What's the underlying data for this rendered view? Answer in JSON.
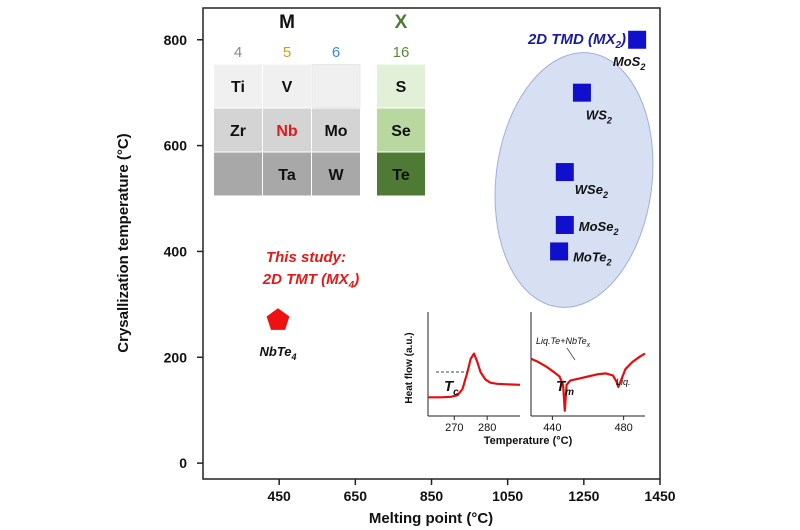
{
  "chart_data": {
    "type": "scatter",
    "title": "",
    "xlabel": "Melting point (°C)",
    "ylabel": "Crysallization temperature (°C)",
    "xlim": [
      250,
      1450
    ],
    "ylim": [
      -30,
      860
    ],
    "xticks": [
      450,
      650,
      850,
      1050,
      1250,
      1450
    ],
    "yticks": [
      0,
      200,
      400,
      600,
      800
    ],
    "series": [
      {
        "name": "2D TMD (MX2)",
        "marker": "square",
        "color": "#1010cc",
        "points": [
          {
            "label_base": "MoS",
            "label_sub": "2",
            "x": 1390,
            "y": 800
          },
          {
            "label_base": "WS",
            "label_sub": "2",
            "x": 1245,
            "y": 700
          },
          {
            "label_base": "WSe",
            "label_sub": "2",
            "x": 1200,
            "y": 550
          },
          {
            "label_base": "MoSe",
            "label_sub": "2",
            "x": 1200,
            "y": 450
          },
          {
            "label_base": "MoTe",
            "label_sub": "2",
            "x": 1185,
            "y": 400
          }
        ]
      },
      {
        "name": "2D TMT (MX4)",
        "marker": "pentagon",
        "color": "#ee1111",
        "points": [
          {
            "label_base": "NbTe",
            "label_sub": "4",
            "x": 447,
            "y": 270
          }
        ]
      }
    ],
    "annotations": {
      "tmd_label": {
        "base": "2D TMD (MX",
        "sub": "2",
        "tail": ")",
        "color": "#1a1aa0"
      },
      "study_line1": "This study:",
      "study_line2": {
        "base": "2D TMT (MX",
        "sub": "4",
        "tail": ")"
      },
      "study_color": "#e01a1a"
    },
    "periodic_table": {
      "m_header": "M",
      "x_header": "X",
      "m_groups": [
        {
          "label": "4",
          "color": "#8a8a8a"
        },
        {
          "label": "5",
          "color": "#c8a020"
        },
        {
          "label": "6",
          "color": "#3a8ad0"
        }
      ],
      "x_group": {
        "label": "16",
        "color": "#5a8a40"
      },
      "m_rows": [
        [
          "Ti",
          "V",
          ""
        ],
        [
          "Zr",
          "Nb",
          "Mo"
        ],
        [
          "",
          "Ta",
          "W"
        ]
      ],
      "x_rows": [
        "S",
        "Se",
        "Te"
      ],
      "highlight_element": "Nb",
      "highlight_color": "#e01a1a",
      "m_row_colors": [
        "#f0f0f0",
        "#d4d4d4",
        "#a8a8a8"
      ],
      "x_row_colors": [
        "#e3f0d8",
        "#b8d8a0",
        "#4e7a36"
      ]
    },
    "inset": {
      "type": "line",
      "ylabel": "Heat flow (a.u.)",
      "xlabel": "Temperature (°C)",
      "left_panel": {
        "xlim": [
          262,
          290
        ],
        "xticks": [
          270,
          280
        ],
        "marker_label": "T",
        "marker_sub": "c",
        "curve": [
          [
            262,
            0.18
          ],
          [
            266,
            0.18
          ],
          [
            269,
            0.185
          ],
          [
            271,
            0.2
          ],
          [
            272.5,
            0.26
          ],
          [
            274,
            0.42
          ],
          [
            275,
            0.55
          ],
          [
            276,
            0.6
          ],
          [
            277,
            0.52
          ],
          [
            278,
            0.42
          ],
          [
            279.5,
            0.35
          ],
          [
            281,
            0.32
          ],
          [
            283,
            0.31
          ],
          [
            286,
            0.305
          ],
          [
            290,
            0.3
          ]
        ]
      },
      "right_panel": {
        "xlim": [
          428,
          492
        ],
        "xticks": [
          440,
          480
        ],
        "marker_label": "T",
        "marker_sub": "m",
        "peak_label_base": "Liq.Te+NbTe",
        "peak_label_sub": "x",
        "liq_label": "Liq.",
        "curve": [
          [
            428,
            0.55
          ],
          [
            432,
            0.52
          ],
          [
            437,
            0.47
          ],
          [
            441,
            0.42
          ],
          [
            444,
            0.38
          ],
          [
            446,
            0.3
          ],
          [
            447,
            0.05
          ],
          [
            448,
            0.3
          ],
          [
            450,
            0.34
          ],
          [
            455,
            0.36
          ],
          [
            460,
            0.38
          ],
          [
            465,
            0.4
          ],
          [
            470,
            0.41
          ],
          [
            474,
            0.39
          ],
          [
            476,
            0.33
          ],
          [
            477,
            0.28
          ],
          [
            478,
            0.32
          ],
          [
            481,
            0.45
          ],
          [
            485,
            0.52
          ],
          [
            489,
            0.57
          ],
          [
            492,
            0.6
          ]
        ]
      }
    }
  }
}
